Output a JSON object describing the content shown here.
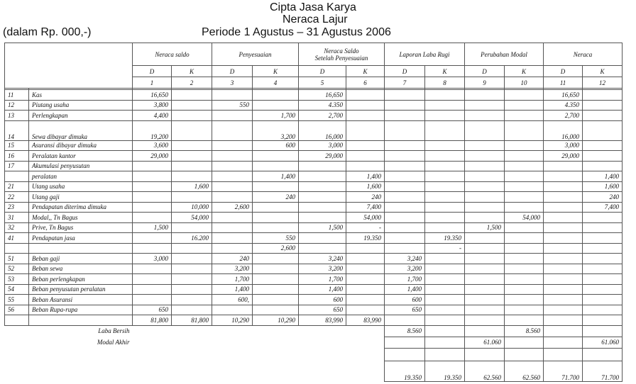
{
  "header": {
    "company": "Cipta Jasa Karya",
    "title": "Neraca Lajur",
    "unit": "(dalam Rp. 000,-)",
    "period": "Periode 1 Agustus – 31 Agustus 2006"
  },
  "table": {
    "groups": [
      [
        "Neraca saldo"
      ],
      [
        "Penyesuaian"
      ],
      [
        "Neraca Saldo",
        "Setelah Penyesuaian"
      ],
      [
        "Laporan Laba Rugi"
      ],
      [
        "Perubahan Modal"
      ],
      [
        "Neraca"
      ]
    ],
    "dk": [
      "D",
      "K",
      "D",
      "K",
      "D",
      "K",
      "D",
      "K",
      "D",
      "K",
      "D",
      "K"
    ],
    "numbers": [
      1,
      2,
      3,
      4,
      5,
      6,
      7,
      8,
      9,
      10,
      11,
      12
    ],
    "rows": [
      {
        "no": "11",
        "account": "Kas",
        "cells": [
          "16,650",
          null,
          null,
          null,
          "16,650",
          null,
          null,
          null,
          null,
          null,
          "16,650",
          null
        ]
      },
      {
        "no": "12",
        "account": "Piutang usaha",
        "cells": [
          "3,800",
          null,
          "550",
          null,
          "4.350",
          null,
          null,
          null,
          null,
          null,
          "4.350",
          null
        ]
      },
      {
        "no": "13",
        "account": "Perlengkapan",
        "cells": [
          "4,400",
          null,
          null,
          "1,700",
          "2,700",
          null,
          null,
          null,
          null,
          null,
          "2,700",
          null
        ]
      },
      {
        "no": "14",
        "account": "Sewa dibayar dimuka",
        "cells": [
          "19,200",
          null,
          null,
          "3,200",
          "16,000",
          null,
          null,
          null,
          null,
          null,
          "16,000",
          null
        ]
      },
      {
        "no": "15",
        "account": "Asuransi dibayar dimuka",
        "cells": [
          "3,600",
          null,
          null,
          "600",
          "3,000",
          null,
          null,
          null,
          null,
          null,
          "3,000",
          null
        ]
      },
      {
        "no": "16",
        "account": "Peralatan kantor",
        "cells": [
          "29,000",
          null,
          null,
          null,
          "29,000",
          null,
          null,
          null,
          null,
          null,
          "29,000",
          null
        ]
      },
      {
        "no": "17",
        "account": "Akumulasi penyusutan",
        "cells": [
          null,
          null,
          null,
          null,
          null,
          null,
          null,
          null,
          null,
          null,
          null,
          null
        ]
      },
      {
        "no": null,
        "account": "peralatan",
        "cells": [
          null,
          null,
          null,
          "1,400",
          null,
          "1,400",
          null,
          null,
          null,
          null,
          null,
          "1,400"
        ]
      },
      {
        "no": "21",
        "account": "Utang usaha",
        "cells": [
          null,
          "1,600",
          null,
          null,
          null,
          "1,600",
          null,
          null,
          null,
          null,
          null,
          "1,600"
        ]
      },
      {
        "no": "22",
        "account": "Utang gaji",
        "cells": [
          null,
          null,
          null,
          "240",
          null,
          "240",
          null,
          null,
          null,
          null,
          null,
          "240"
        ]
      },
      {
        "no": "23",
        "account": "Pendapatan diterima dimuka",
        "cells": [
          null,
          "10,000",
          "2,600",
          null,
          null,
          "7,400",
          null,
          null,
          null,
          null,
          null,
          "7,400"
        ]
      },
      {
        "no": "31",
        "account": "Modal,, Tn Bagus",
        "cells": [
          null,
          "54,000",
          null,
          null,
          null,
          "54,000",
          null,
          null,
          null,
          "54,000",
          null,
          null
        ]
      },
      {
        "no": "32",
        "account": "Prive, Tn Bagus",
        "cells": [
          "1,500",
          null,
          null,
          null,
          "1,500",
          "-",
          null,
          null,
          "1,500",
          null,
          null,
          null
        ]
      },
      {
        "no": "41",
        "account": "Pendapatan jasa",
        "cells": [
          null,
          "16.200",
          null,
          "550",
          null,
          "19.350",
          null,
          "19.350",
          null,
          null,
          null,
          null
        ]
      },
      {
        "no": null,
        "account": null,
        "cells": [
          null,
          null,
          null,
          "2,600",
          null,
          null,
          null,
          "-",
          null,
          null,
          null,
          null
        ]
      },
      {
        "no": "51",
        "account": "Beban gaji",
        "cells": [
          "3,000",
          null,
          "240",
          null,
          "3,240",
          null,
          "3,240",
          null,
          null,
          null,
          null,
          null
        ]
      },
      {
        "no": "52",
        "account": "Beban sewa",
        "cells": [
          null,
          null,
          "3,200",
          null,
          "3,200",
          null,
          "3,200",
          null,
          null,
          null,
          null,
          null
        ]
      },
      {
        "no": "53",
        "account": "Beban perlengkapan",
        "cells": [
          null,
          null,
          "1,700",
          null,
          "1,700",
          null,
          "1,700",
          null,
          null,
          null,
          null,
          null
        ]
      },
      {
        "no": "54",
        "account": "Beban penyusutan peralatan",
        "cells": [
          null,
          null,
          "1,400",
          null,
          "1,400",
          null,
          "1,400",
          null,
          null,
          null,
          null,
          null
        ]
      },
      {
        "no": "55",
        "account": "Beban Asuransi",
        "cells": [
          null,
          null,
          "600,",
          null,
          "600",
          null,
          "600",
          null,
          null,
          null,
          null,
          null
        ]
      },
      {
        "no": "56",
        "account": "Beban Rupa-rupa",
        "cells": [
          "650",
          null,
          null,
          null,
          "650",
          null,
          "650",
          null,
          null,
          null,
          null,
          null
        ]
      }
    ],
    "totals": [
      "81,800",
      "81,800",
      "10,290",
      "10,290",
      "83,990",
      "83,990",
      null,
      null,
      null,
      null,
      null,
      null
    ],
    "summary": [
      {
        "label": "Laba Bersih",
        "cells": [
          null,
          null,
          null,
          null,
          null,
          null,
          "8.560",
          null,
          null,
          "8.560",
          null,
          null
        ]
      },
      {
        "label": "Modal Akhir",
        "cells": [
          null,
          null,
          null,
          null,
          null,
          null,
          null,
          null,
          "61.060",
          null,
          null,
          "61.060"
        ]
      },
      {
        "label": null,
        "cells": [
          null,
          null,
          null,
          null,
          null,
          null,
          null,
          null,
          null,
          null,
          null,
          null
        ]
      }
    ],
    "grand_total": [
      null,
      null,
      null,
      null,
      null,
      null,
      "19.350",
      "19.350",
      "62.560",
      "62.560",
      "71.700",
      "71.700"
    ]
  }
}
